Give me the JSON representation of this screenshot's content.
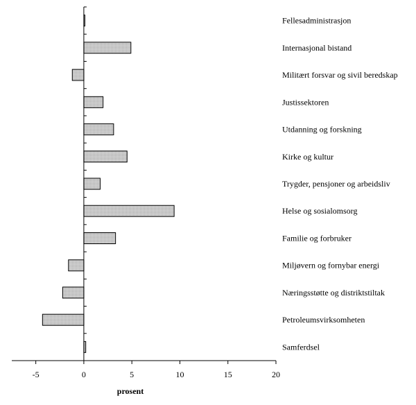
{
  "chart_data": {
    "type": "bar",
    "orientation": "horizontal",
    "title": "",
    "xlabel": "prosent",
    "ylabel": "",
    "xlim": [
      -7.5,
      20
    ],
    "xticks": [
      -5,
      0,
      5,
      10,
      15,
      20
    ],
    "xtick_labels": [
      "-5",
      "0",
      "5",
      "10",
      "15",
      "20"
    ],
    "grid": false,
    "bar_color": "#c8c8c8",
    "categories": [
      "Fellesadministrasjon",
      "Internasjonal bistand",
      "Militært forsvar og sivil beredskap",
      "Justissektoren",
      "Utdanning og forskning",
      "Kirke og kultur",
      "Trygder, pensjoner og arbeidsliv",
      "Helse og sosialomsorg",
      "Familie og forbruker",
      "Miljøvern og fornybar energi",
      "Næringsstøtte og distriktstiltak",
      "Petroleumsvirksomheten",
      "Samferdsel"
    ],
    "values": [
      0.1,
      4.9,
      -1.2,
      2.0,
      3.1,
      4.5,
      1.7,
      9.4,
      3.3,
      -1.6,
      -2.2,
      -4.3,
      0.2
    ]
  }
}
